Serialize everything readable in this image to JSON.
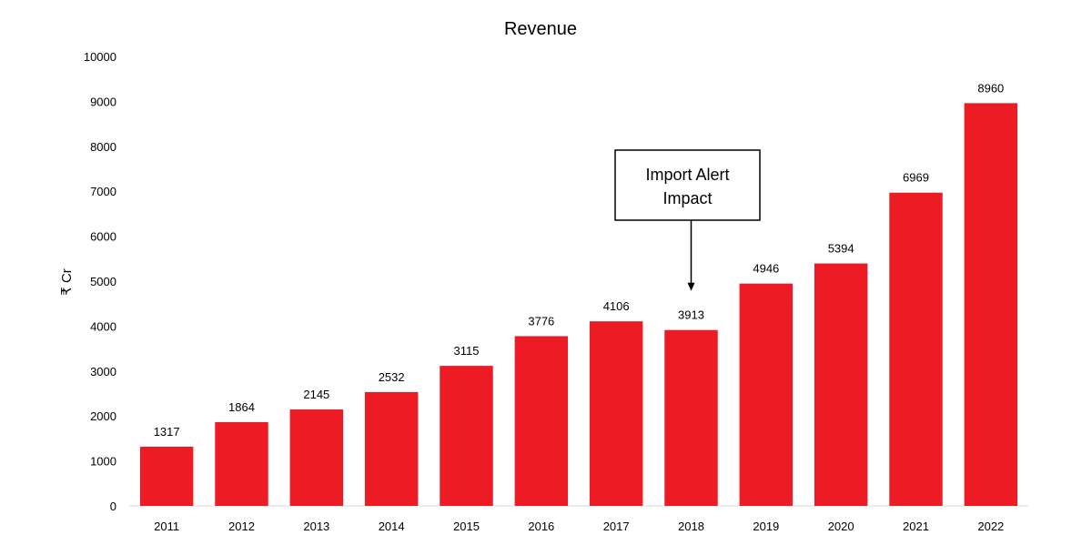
{
  "chart_data": {
    "type": "bar",
    "title": "Revenue",
    "xlabel": "",
    "ylabel": "₹ Cr",
    "categories": [
      "2011",
      "2012",
      "2013",
      "2014",
      "2015",
      "2016",
      "2017",
      "2018",
      "2019",
      "2020",
      "2021",
      "2022"
    ],
    "values": [
      1317,
      1864,
      2145,
      2532,
      3115,
      3776,
      4106,
      3913,
      4946,
      5394,
      6969,
      8960
    ],
    "ylim": [
      0,
      10000
    ],
    "yticks": [
      "0",
      "1000",
      "2000",
      "3000",
      "4000",
      "5000",
      "6000",
      "7000",
      "8000",
      "9000",
      "10000"
    ],
    "grid": false,
    "legend": "none",
    "bar_color": "#ED1C24",
    "annotation": {
      "lines": [
        "Import Alert",
        "Impact"
      ],
      "target_category": "2018"
    }
  }
}
